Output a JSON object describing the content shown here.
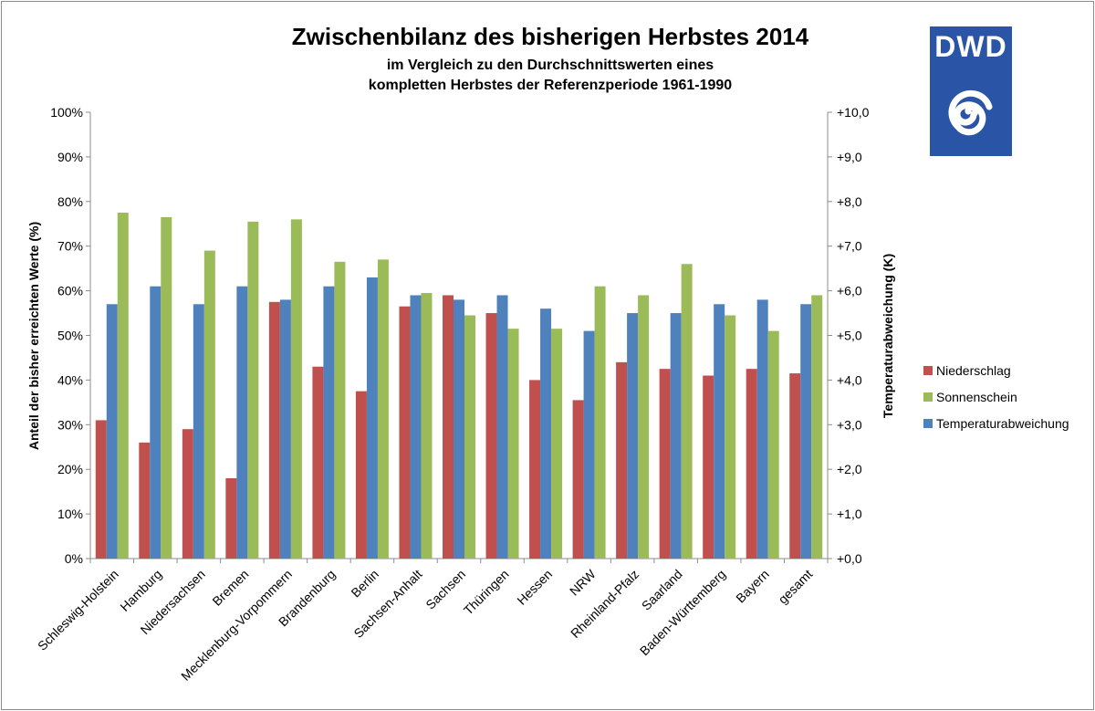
{
  "logo": {
    "text": "DWD",
    "background": "#2a55a6"
  },
  "chart_data": {
    "type": "bar",
    "title": "Zwischenbilanz des bisherigen Herbstes 2014",
    "subtitle_lines": [
      "im Vergleich zu den Durchschnittswerten eines",
      "kompletten Herbstes der Referenzperiode 1961-1990"
    ],
    "ylabel_left": "Anteil der bisher erreichten Werte (%)",
    "ylabel_right": "Temperaturabweichung (K)",
    "ylim_left": [
      0,
      100
    ],
    "ylim_right": [
      0,
      10
    ],
    "yticks_left": [
      "0%",
      "10%",
      "20%",
      "30%",
      "40%",
      "50%",
      "60%",
      "70%",
      "80%",
      "90%",
      "100%"
    ],
    "yticks_right": [
      "+0,0",
      "+1,0",
      "+2,0",
      "+3,0",
      "+4,0",
      "+5,0",
      "+6,0",
      "+7,0",
      "+8,0",
      "+9,0",
      "+10,0"
    ],
    "grid": false,
    "legend_position": "right",
    "categories": [
      "Schleswig-Holstein",
      "Hamburg",
      "Niedersachsen",
      "Bremen",
      "Mecklenburg-Vorpommern",
      "Brandenburg",
      "Berlin",
      "Sachsen-Anhalt",
      "Sachsen",
      "Thüringen",
      "Hessen",
      "NRW",
      "Rheinland-Pfalz",
      "Saarland",
      "Baden-Württemberg",
      "Bayern",
      "gesamt"
    ],
    "series": [
      {
        "name": "Niederschlag",
        "axis": "left",
        "color": "#c0504d",
        "values": [
          31,
          26,
          29,
          18,
          57.5,
          43,
          37.5,
          56.5,
          59,
          55,
          40,
          35.5,
          44,
          42.5,
          41,
          42.5,
          41.5
        ]
      },
      {
        "name": "Temperaturabweichung",
        "axis": "right",
        "color": "#4f81bd",
        "values": [
          5.7,
          6.1,
          5.7,
          6.1,
          5.8,
          6.1,
          6.3,
          5.9,
          5.8,
          5.9,
          5.6,
          5.1,
          5.5,
          5.5,
          5.7,
          5.8,
          5.7
        ]
      },
      {
        "name": "Sonnenschein",
        "axis": "left",
        "color": "#9bbb59",
        "values": [
          77.5,
          76.5,
          69,
          75.5,
          76,
          66.5,
          67,
          59.5,
          54.5,
          51.5,
          51.5,
          61,
          59,
          66,
          54.5,
          51,
          59
        ]
      }
    ],
    "legend_order": [
      "Niederschlag",
      "Sonnenschein",
      "Temperaturabweichung"
    ]
  }
}
